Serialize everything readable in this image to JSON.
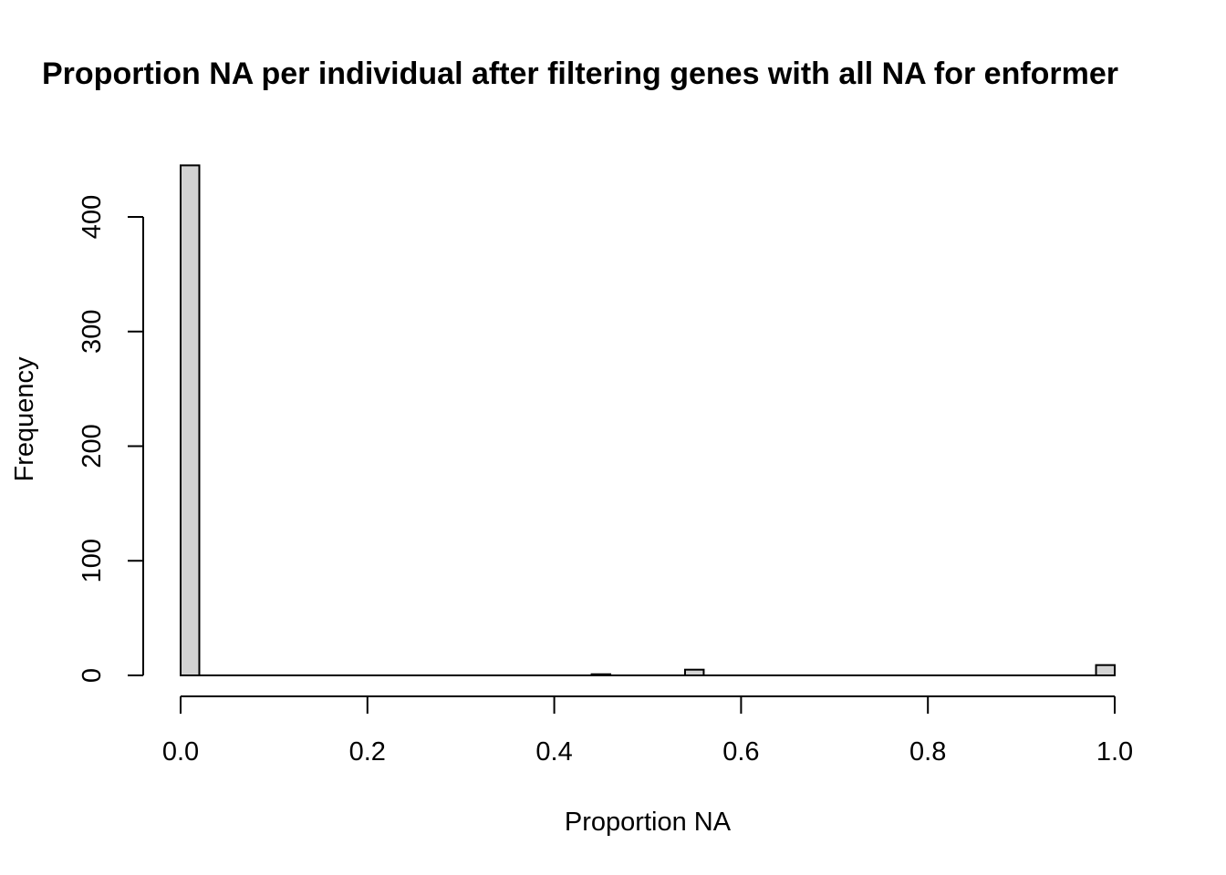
{
  "chart_data": {
    "type": "bar",
    "title": "Proportion NA per individual after filtering genes with all NA for enformer",
    "xlabel": "Proportion NA",
    "ylabel": "Frequency",
    "xlim": [
      0,
      1
    ],
    "ylim": [
      0,
      445
    ],
    "x_ticks": [
      "0.0",
      "0.2",
      "0.4",
      "0.6",
      "0.8",
      "1.0"
    ],
    "y_ticks": [
      "0",
      "100",
      "200",
      "300",
      "400"
    ],
    "bin_width": 0.02,
    "bins": [
      {
        "start": 0.0,
        "end": 0.02,
        "count": 445
      },
      {
        "start": 0.44,
        "end": 0.46,
        "count": 1
      },
      {
        "start": 0.54,
        "end": 0.56,
        "count": 5
      },
      {
        "start": 0.98,
        "end": 1.0,
        "count": 9
      }
    ],
    "bar_fill": "#d3d3d3",
    "grid": false
  }
}
